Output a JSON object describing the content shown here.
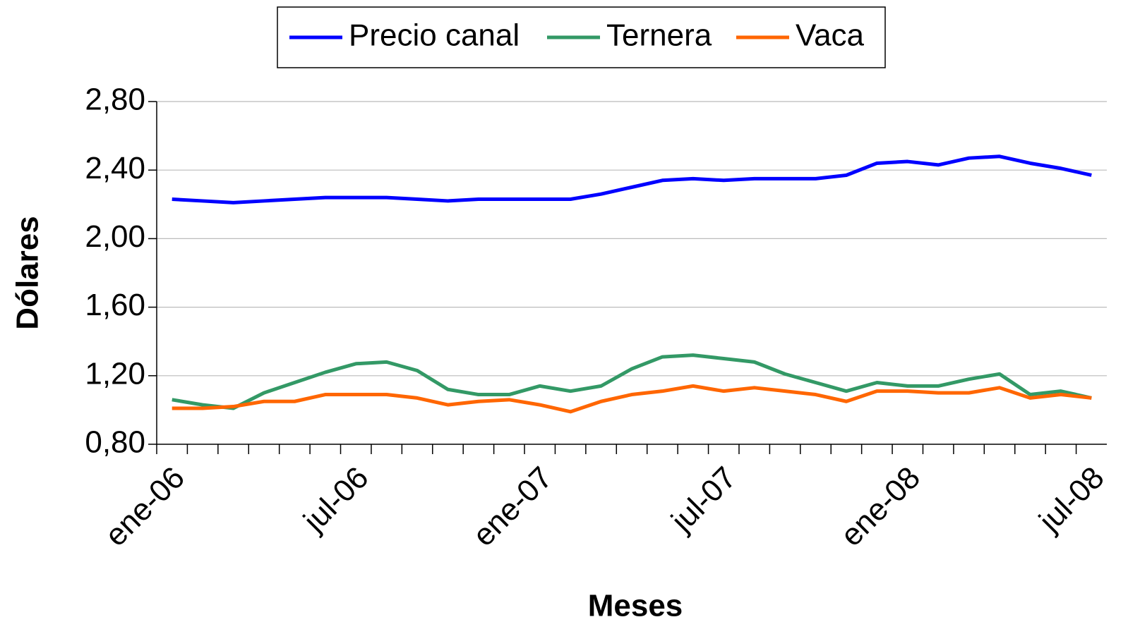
{
  "chart_data": {
    "type": "line",
    "x_label": "Meses",
    "y_label": "Dólares",
    "categories": [
      "ene-06",
      null,
      null,
      null,
      null,
      null,
      "jul-06",
      null,
      null,
      null,
      null,
      null,
      "ene-07",
      null,
      null,
      null,
      null,
      null,
      "jul-07",
      null,
      null,
      null,
      null,
      null,
      "ene-08",
      null,
      null,
      null,
      null,
      null,
      "jul-08"
    ],
    "series": [
      {
        "name": "Precio canal",
        "color": "#0000ff",
        "values": [
          2.23,
          2.22,
          2.21,
          2.22,
          2.23,
          2.24,
          2.24,
          2.24,
          2.23,
          2.22,
          2.23,
          2.23,
          2.23,
          2.23,
          2.26,
          2.3,
          2.34,
          2.35,
          2.34,
          2.35,
          2.35,
          2.35,
          2.37,
          2.44,
          2.45,
          2.43,
          2.47,
          2.48,
          2.44,
          2.41,
          2.37
        ]
      },
      {
        "name": "Ternera",
        "color": "#339966",
        "values": [
          1.06,
          1.03,
          1.01,
          1.1,
          1.16,
          1.22,
          1.27,
          1.28,
          1.23,
          1.12,
          1.09,
          1.09,
          1.14,
          1.11,
          1.14,
          1.24,
          1.31,
          1.32,
          1.3,
          1.28,
          1.21,
          1.16,
          1.11,
          1.16,
          1.14,
          1.14,
          1.18,
          1.21,
          1.09,
          1.11,
          1.07
        ]
      },
      {
        "name": "Vaca",
        "color": "#ff6600",
        "values": [
          1.01,
          1.01,
          1.02,
          1.05,
          1.05,
          1.09,
          1.09,
          1.09,
          1.07,
          1.03,
          1.05,
          1.06,
          1.03,
          0.99,
          1.05,
          1.09,
          1.11,
          1.14,
          1.11,
          1.13,
          1.11,
          1.09,
          1.05,
          1.11,
          1.11,
          1.1,
          1.1,
          1.13,
          1.07,
          1.09,
          1.07
        ]
      }
    ],
    "ylim": [
      0.8,
      2.8
    ],
    "yticks": [
      {
        "value": 0.8,
        "label": "0,80"
      },
      {
        "value": 1.2,
        "label": "1,20"
      },
      {
        "value": 1.6,
        "label": "1,60"
      },
      {
        "value": 2.0,
        "label": "2,00"
      },
      {
        "value": 2.4,
        "label": "2,40"
      },
      {
        "value": 2.8,
        "label": "2,80"
      }
    ],
    "grid": true,
    "legend": "top"
  }
}
